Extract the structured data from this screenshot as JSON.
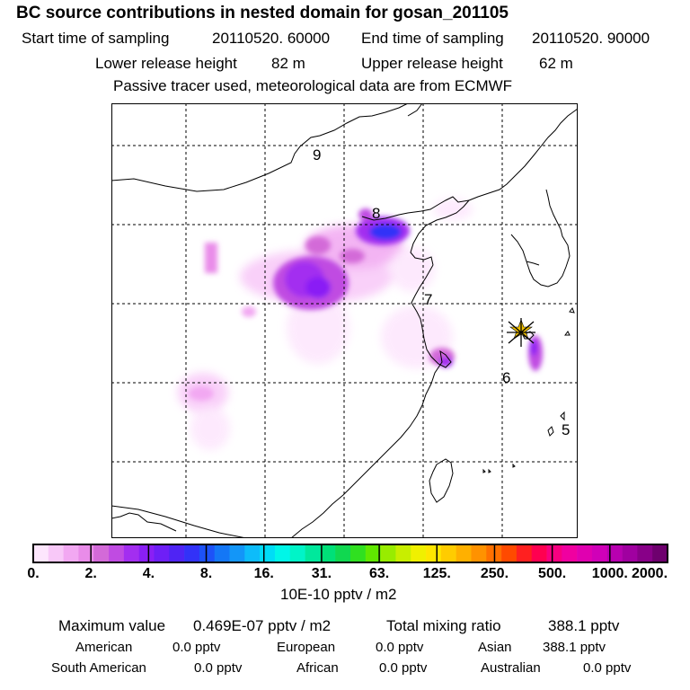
{
  "header": {
    "title": "BC  source contributions in nested domain for gosan_201105",
    "start_label": "Start time of sampling",
    "start_value": "20110520. 60000",
    "end_label": "End time of sampling",
    "end_value": "20110520. 90000",
    "lower_label": "Lower release height",
    "lower_value": "82 m",
    "upper_label": "Upper release height",
    "upper_value": "62 m",
    "note": "Passive tracer used, meteorological data are from ECMWF"
  },
  "map": {
    "grid_labels": [
      "9",
      "8",
      "7",
      "6",
      "5"
    ],
    "receptor_icon": "star-marker-icon"
  },
  "colorbar": {
    "colors": [
      "#fde6fd",
      "#f8c8f8",
      "#f2a8f2",
      "#e98ce9",
      "#d36ad8",
      "#c04be2",
      "#a32ef0",
      "#8a1ff5",
      "#6e1ff6",
      "#4f24f4",
      "#3232f8",
      "#1d52f8",
      "#1477f6",
      "#1396f8",
      "#0dbcfa",
      "#00dcf6",
      "#00f6e8",
      "#00f4c8",
      "#00e89c",
      "#00e078",
      "#10d850",
      "#30e020",
      "#60e800",
      "#98ec00",
      "#c8ee00",
      "#f0f000",
      "#ffe600",
      "#ffcc00",
      "#ffb000",
      "#ff9200",
      "#ff7000",
      "#ff4a00",
      "#ff2020",
      "#ff0050",
      "#f80080",
      "#f000a0",
      "#e000b0",
      "#d000b8",
      "#b800b0",
      "#a000a0",
      "#880088",
      "#6e006e"
    ],
    "tick_labels": [
      "0.",
      "2.",
      "4.",
      "8.",
      "16.",
      "31.",
      "63.",
      "125.",
      "250.",
      "500.",
      "1000.",
      "2000."
    ],
    "units": "10E-10 pptv / m2"
  },
  "stats": {
    "max_label": "Maximum value",
    "max_value": "0.469E-07 pptv / m2",
    "total_label": "Total mixing ratio",
    "total_value": "388.1 pptv",
    "regions": [
      {
        "name": "American",
        "value": "0.0 pptv"
      },
      {
        "name": "European",
        "value": "0.0 pptv"
      },
      {
        "name": "Asian",
        "value": "388.1 pptv"
      },
      {
        "name": "South American",
        "value": "0.0 pptv"
      },
      {
        "name": "African",
        "value": "0.0 pptv"
      },
      {
        "name": "Australian",
        "value": "0.0 pptv"
      }
    ]
  }
}
